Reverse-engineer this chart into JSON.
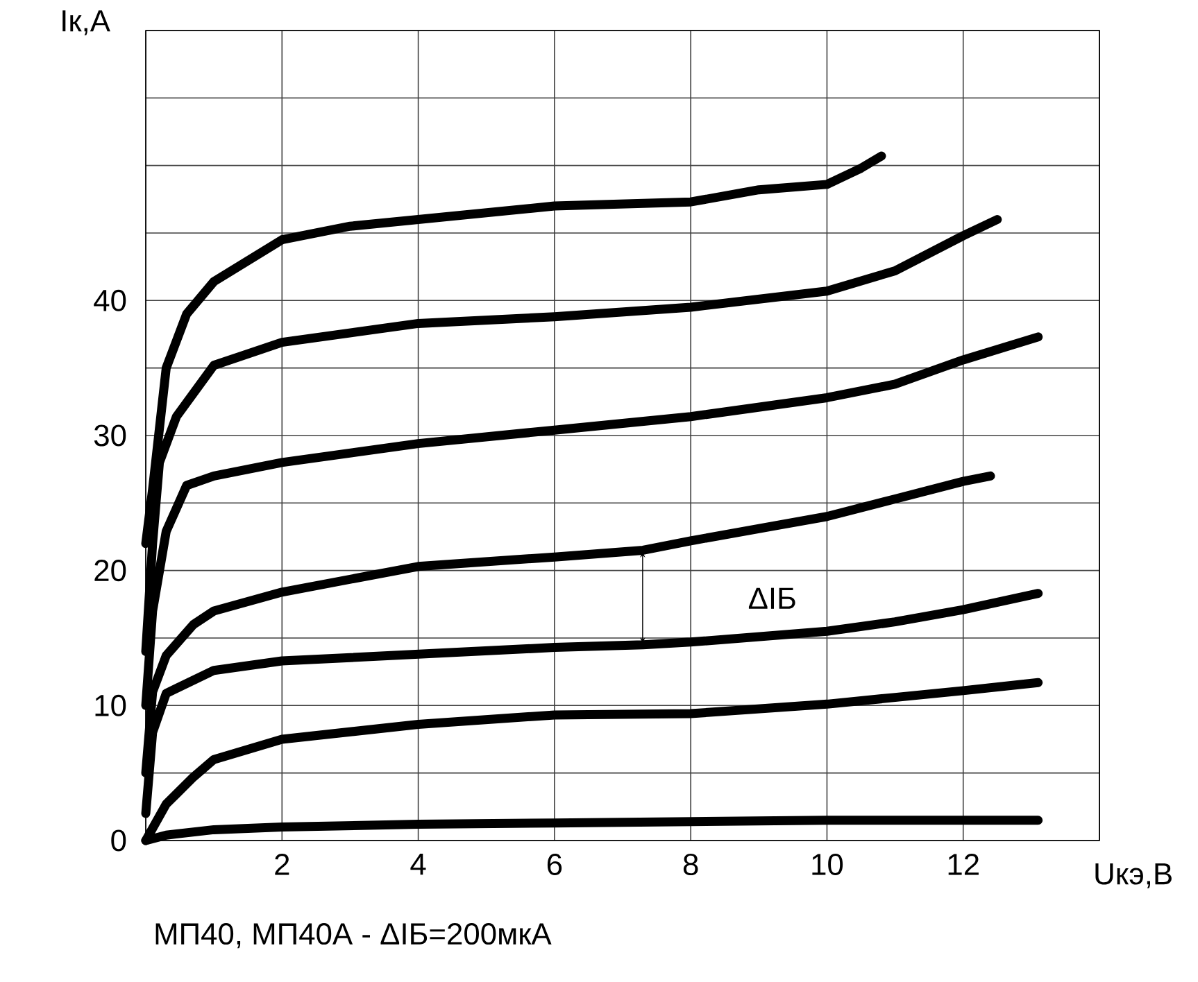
{
  "chart_data": {
    "type": "line",
    "title": "МП40, МП40А - ΔIБ=200мкА",
    "xlabel": "Uкэ,В",
    "ylabel": "Iк,А",
    "annotations": [
      "ΔIБ"
    ],
    "xlim": [
      0,
      14
    ],
    "ylim": [
      0,
      60
    ],
    "xticks": [
      {
        "value": 0,
        "label": null
      },
      2,
      4,
      6,
      8,
      10,
      12,
      {
        "value": 14,
        "label": null
      }
    ],
    "yticks": [
      0,
      {
        "value": 5,
        "label": null
      },
      10,
      {
        "value": 15,
        "label": null
      },
      20,
      {
        "value": 25,
        "label": null
      },
      30,
      {
        "value": 35,
        "label": null
      },
      40,
      {
        "value": 45,
        "label": null
      },
      {
        "value": 50,
        "label": null
      },
      {
        "value": 55,
        "label": null
      },
      {
        "value": 60,
        "label": null
      }
    ],
    "grid": true,
    "marker": "none",
    "line_style": "solid",
    "series": [
      {
        "color": "#000000",
        "x": [
          0,
          0.1,
          0.3,
          0.6,
          1,
          2,
          3,
          4,
          6,
          8,
          9,
          10,
          10.5,
          10.8
        ],
        "values": [
          22,
          26,
          35,
          39,
          41.4,
          44.5,
          45.5,
          46,
          47,
          47.3,
          48.2,
          48.6,
          49.8,
          50.7
        ]
      },
      {
        "color": "#000000",
        "x": [
          0,
          0.1,
          0.2,
          0.45,
          1,
          2,
          4,
          6,
          8,
          10,
          11,
          12,
          12.5
        ],
        "values": [
          14,
          22,
          28,
          31.4,
          35.2,
          36.9,
          38.3,
          38.8,
          39.5,
          40.7,
          42.2,
          44.8,
          46
        ]
      },
      {
        "color": "#000000",
        "x": [
          0,
          0.1,
          0.3,
          0.6,
          1,
          2,
          4,
          6,
          8,
          10,
          11,
          12,
          13.1
        ],
        "values": [
          10,
          17,
          22.9,
          26.3,
          27,
          28,
          29.4,
          30.4,
          31.4,
          32.8,
          33.8,
          35.6,
          37.3
        ]
      },
      {
        "color": "#000000",
        "x": [
          0,
          0.1,
          0.3,
          0.7,
          1,
          2,
          4,
          6,
          7.3,
          8,
          10,
          11,
          12,
          12.4
        ],
        "values": [
          5,
          11,
          13.7,
          16,
          17,
          18.4,
          20.3,
          21,
          21.5,
          22.2,
          24,
          25.3,
          26.6,
          27
        ]
      },
      {
        "color": "#000000",
        "x": [
          0,
          0.1,
          0.3,
          1,
          2,
          4,
          6,
          7.3,
          8,
          10,
          11,
          12,
          13.1
        ],
        "values": [
          2,
          8,
          10.9,
          12.6,
          13.3,
          13.8,
          14.3,
          14.5,
          14.7,
          15.5,
          16.2,
          17.1,
          18.3
        ]
      },
      {
        "color": "#000000",
        "x": [
          0,
          0.3,
          0.7,
          1,
          2,
          4,
          6,
          8,
          10,
          11,
          12,
          13.1
        ],
        "values": [
          0,
          2.7,
          4.7,
          6,
          7.5,
          8.6,
          9.3,
          9.4,
          10.1,
          10.6,
          11.1,
          11.7
        ]
      },
      {
        "color": "#000000",
        "x": [
          0,
          0.3,
          1,
          2,
          4,
          6,
          8,
          10,
          13.1
        ],
        "values": [
          0,
          0.4,
          0.8,
          1.0,
          1.2,
          1.3,
          1.4,
          1.5,
          1.5
        ]
      }
    ]
  }
}
